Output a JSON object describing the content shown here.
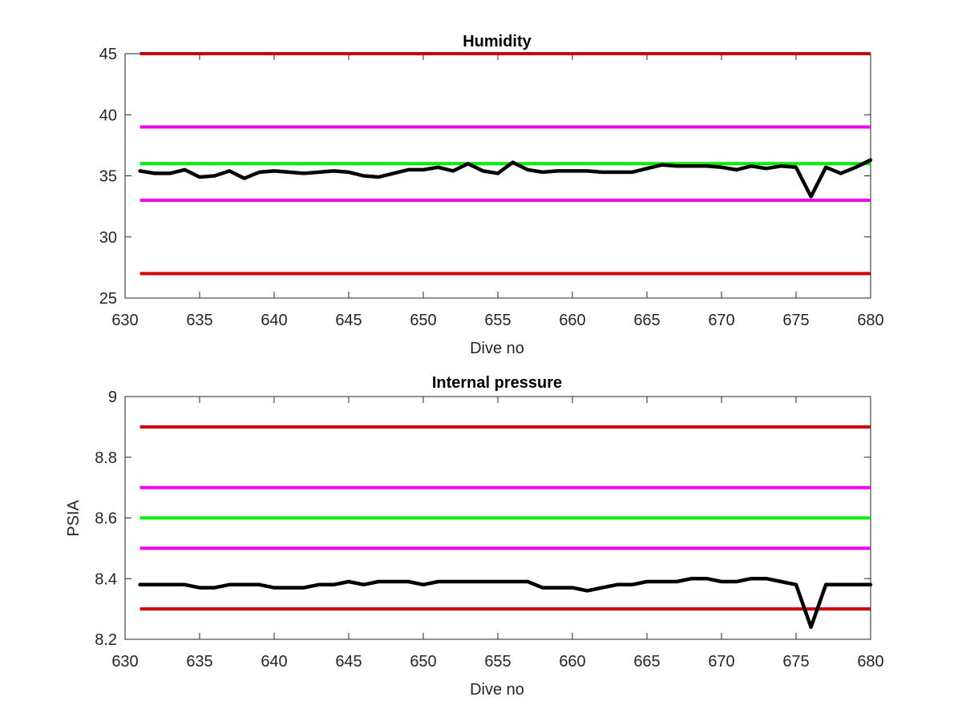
{
  "chart_data": [
    {
      "type": "line",
      "title": "Humidity",
      "xlabel": "Dive no",
      "ylabel": "",
      "xlim": [
        630,
        680
      ],
      "ylim": [
        25,
        45
      ],
      "xticks": [
        "630",
        "635",
        "640",
        "645",
        "650",
        "655",
        "660",
        "665",
        "670",
        "675",
        "680"
      ],
      "yticks": [
        "25",
        "30",
        "35",
        "40",
        "45"
      ],
      "grid": false,
      "reference_lines": [
        {
          "y": 45,
          "color": "#cc0000"
        },
        {
          "y": 39,
          "color": "#ee00ee"
        },
        {
          "y": 36,
          "color": "#00ee00"
        },
        {
          "y": 33,
          "color": "#ee00ee"
        },
        {
          "y": 27,
          "color": "#cc0000"
        }
      ],
      "series": [
        {
          "color": "#000000",
          "x": [
            631,
            632,
            633,
            634,
            635,
            636,
            637,
            638,
            639,
            640,
            641,
            642,
            643,
            644,
            645,
            646,
            647,
            648,
            649,
            650,
            651,
            652,
            653,
            654,
            655,
            656,
            657,
            658,
            659,
            660,
            661,
            662,
            663,
            664,
            665,
            666,
            667,
            668,
            669,
            670,
            671,
            672,
            673,
            674,
            675,
            676,
            677,
            678,
            679,
            680
          ],
          "y": [
            35.4,
            35.2,
            35.2,
            35.5,
            34.9,
            35.0,
            35.4,
            34.8,
            35.3,
            35.4,
            35.3,
            35.2,
            35.3,
            35.4,
            35.3,
            35.0,
            34.9,
            35.2,
            35.5,
            35.5,
            35.7,
            35.4,
            36.0,
            35.4,
            35.2,
            36.1,
            35.5,
            35.3,
            35.4,
            35.4,
            35.4,
            35.3,
            35.3,
            35.3,
            35.6,
            35.9,
            35.8,
            35.8,
            35.8,
            35.7,
            35.5,
            35.8,
            35.6,
            35.8,
            35.7,
            33.3,
            35.7,
            35.2,
            35.7,
            36.3
          ]
        }
      ]
    },
    {
      "type": "line",
      "title": "Internal pressure",
      "xlabel": "Dive no",
      "ylabel": "PSIA",
      "xlim": [
        630,
        680
      ],
      "ylim": [
        8.2,
        9.0
      ],
      "xticks": [
        "630",
        "635",
        "640",
        "645",
        "650",
        "655",
        "660",
        "665",
        "670",
        "675",
        "680"
      ],
      "yticks": [
        "8.2",
        "8.4",
        "8.6",
        "8.8",
        "9"
      ],
      "grid": false,
      "reference_lines": [
        {
          "y": 8.9,
          "color": "#cc0000"
        },
        {
          "y": 8.7,
          "color": "#ee00ee"
        },
        {
          "y": 8.6,
          "color": "#00ee00"
        },
        {
          "y": 8.5,
          "color": "#ee00ee"
        },
        {
          "y": 8.3,
          "color": "#cc0000"
        }
      ],
      "series": [
        {
          "color": "#000000",
          "x": [
            631,
            632,
            633,
            634,
            635,
            636,
            637,
            638,
            639,
            640,
            641,
            642,
            643,
            644,
            645,
            646,
            647,
            648,
            649,
            650,
            651,
            652,
            653,
            654,
            655,
            656,
            657,
            658,
            659,
            660,
            661,
            662,
            663,
            664,
            665,
            666,
            667,
            668,
            669,
            670,
            671,
            672,
            673,
            674,
            675,
            676,
            677,
            678,
            679,
            680
          ],
          "y": [
            8.38,
            8.38,
            8.38,
            8.38,
            8.37,
            8.37,
            8.38,
            8.38,
            8.38,
            8.37,
            8.37,
            8.37,
            8.38,
            8.38,
            8.39,
            8.38,
            8.39,
            8.39,
            8.39,
            8.38,
            8.39,
            8.39,
            8.39,
            8.39,
            8.39,
            8.39,
            8.39,
            8.37,
            8.37,
            8.37,
            8.36,
            8.37,
            8.38,
            8.38,
            8.39,
            8.39,
            8.39,
            8.4,
            8.4,
            8.39,
            8.39,
            8.4,
            8.4,
            8.39,
            8.38,
            8.24,
            8.38,
            8.38,
            8.38,
            8.38
          ]
        }
      ]
    }
  ]
}
